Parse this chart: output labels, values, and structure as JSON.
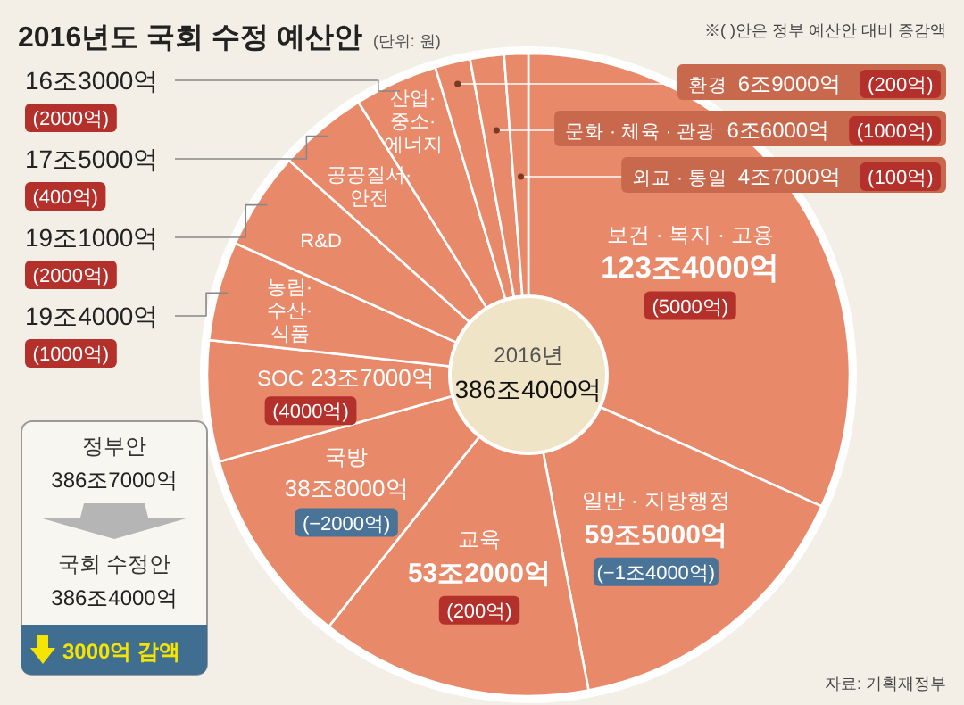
{
  "chart_data": {
    "type": "donut",
    "title": "2016년도 국회 수정 예산안",
    "subtitle": "(단위: 원)",
    "categories": [
      "보건 · 복지 · 고용",
      "일반 · 지방행정",
      "교육",
      "국방",
      "SOC",
      "농림·수산·식품",
      "R&D",
      "공공질서·안전",
      "산업·중소·에너지",
      "환경",
      "문화 · 체육 · 관광",
      "외교 · 통일"
    ],
    "values": [
      31.71,
      15.29,
      13.67,
      9.97,
      6.09,
      4.99,
      4.91,
      4.5,
      4.19,
      1.77,
      1.7,
      1.21
    ],
    "colors": [
      "#e8896a",
      "#e8896a",
      "#e8896a",
      "#e8896a",
      "#e8896a",
      "#e8896a",
      "#e8896a",
      "#e8896a",
      "#e8896a",
      "#e8896a",
      "#e8896a",
      "#e8896a"
    ],
    "annotations": [
      {
        "text": "123조4000억",
        "x": "보건 · 복지 · 고용"
      },
      {
        "text": "59조5000억",
        "x": "일반 · 지방행정"
      },
      {
        "text": "53조2000억",
        "x": "교육"
      },
      {
        "text": "38조8000억",
        "x": "국방"
      },
      {
        "text": "23조7000억",
        "x": "SOC"
      },
      {
        "text": "19조4000억",
        "x": "농림·수산·식품"
      },
      {
        "text": "19조1000억",
        "x": "R&D"
      },
      {
        "text": "17조5000억",
        "x": "공공질서·안전"
      },
      {
        "text": "16조3000억",
        "x": "산업·중소·에너지"
      },
      {
        "text": "6조9000억",
        "x": "환경"
      },
      {
        "text": "6조6000억",
        "x": "문화 · 체육 · 관광"
      },
      {
        "text": "4조7000억",
        "x": "외교 · 통일"
      },
      {
        "text": "(5000억)",
        "x": "보건 · 복지 · 고용"
      },
      {
        "text": "(−1조4000억)",
        "x": "일반 · 지방행정"
      },
      {
        "text": "(200억)",
        "x": "교육"
      },
      {
        "text": "(−2000억)",
        "x": "국방"
      },
      {
        "text": "(4000억)",
        "x": "SOC"
      },
      {
        "text": "(1000억)",
        "x": "농림·수산·식품"
      },
      {
        "text": "(2000억)",
        "x": "R&D"
      },
      {
        "text": "(400억)",
        "x": "공공질서·안전"
      },
      {
        "text": "(2000억)",
        "x": "산업·중소·에너지"
      },
      {
        "text": "(200억)",
        "x": "환경"
      },
      {
        "text": "(1000억)",
        "x": "문화 · 체육 · 관광"
      },
      {
        "text": "(100억)",
        "x": "외교 · 통일"
      },
      "※(  )안은 정부 예산안 대비 증감액",
      "2016년",
      "386조4000억",
      "정부안",
      "386조7000억",
      "국회 수정안",
      "386조4000억",
      "3000억 감액",
      "자료: 기획재정부"
    ]
  }
}
